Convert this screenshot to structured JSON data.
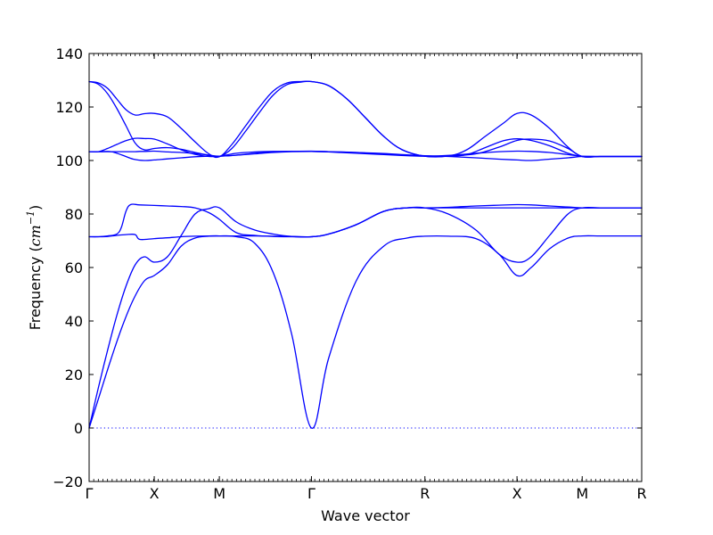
{
  "chart_data": {
    "type": "line",
    "title": "",
    "xlabel": "Wave vector",
    "ylabel_text": "Frequency (",
    "ylabel_unit": "cm",
    "ylabel_sup": "−1",
    "ylabel_close": ")",
    "ylim": [
      -20,
      140
    ],
    "yticks": [
      -20,
      0,
      20,
      40,
      60,
      80,
      100,
      120,
      140
    ],
    "xlim": [
      0,
      6
    ],
    "xticks": [
      {
        "pos": 0.0,
        "label": "Γ"
      },
      {
        "pos": 0.707,
        "label": "X"
      },
      {
        "pos": 1.414,
        "label": "M"
      },
      {
        "pos": 2.414,
        "label": "Γ"
      },
      {
        "pos": 3.646,
        "label": "R"
      },
      {
        "pos": 4.646,
        "label": "X"
      },
      {
        "pos": 5.354,
        "label": "M"
      },
      {
        "pos": 6.0,
        "label": "R"
      }
    ],
    "grid": false,
    "zero_line": true,
    "colors": {
      "series": "#0000ff",
      "axes": "#000000"
    },
    "series": [
      {
        "x": [
          0,
          0.12,
          0.24,
          0.36,
          0.48,
          0.6,
          0.707,
          0.85,
          1.0,
          1.15,
          1.3,
          1.414,
          1.6,
          1.8,
          2.0,
          2.2,
          2.414,
          2.6,
          2.9,
          3.2,
          3.45,
          3.646,
          3.9,
          4.2,
          4.45,
          4.646,
          4.8,
          5.0,
          5.2,
          5.354,
          5.55,
          5.8,
          6.0
        ],
        "y": [
          0,
          13,
          26,
          38,
          48,
          55,
          57,
          61,
          68,
          71,
          71.7,
          71.8,
          71.5,
          69,
          58,
          35,
          0,
          26,
          55,
          68,
          71,
          71.7,
          71.7,
          70.8,
          65,
          57,
          60,
          67,
          71,
          71.8,
          71.8,
          71.8,
          71.8
        ]
      },
      {
        "x": [
          0,
          0.1,
          0.2,
          0.3,
          0.4,
          0.5,
          0.6,
          0.707,
          0.85,
          1.0,
          1.15,
          1.3,
          1.414,
          1.6,
          1.8,
          2.0,
          2.2,
          2.414,
          2.6,
          2.9,
          3.2,
          3.45,
          3.646,
          3.9,
          4.2,
          4.45,
          4.646,
          4.8,
          5.0,
          5.2,
          5.354,
          5.55,
          5.8,
          6.0
        ],
        "y": [
          0,
          15,
          29,
          42,
          53,
          61,
          64,
          62,
          64,
          72,
          80,
          82,
          82.3,
          77,
          74,
          72.5,
          71.6,
          71.5,
          72.5,
          76,
          81,
          82.3,
          82.3,
          80,
          74,
          65,
          62,
          64,
          72,
          80,
          82.3,
          82.3,
          82.3,
          82.3
        ]
      },
      {
        "x": [
          0,
          0.1,
          0.2,
          0.3,
          0.35,
          0.4,
          0.45,
          0.55,
          0.707,
          0.85,
          1.0,
          1.15,
          1.3,
          1.414,
          1.6,
          1.8,
          2.0,
          2.2,
          2.414,
          2.6,
          2.9,
          3.2,
          3.45,
          3.646,
          3.9,
          4.2,
          4.45,
          4.646,
          4.8,
          5.0,
          5.2,
          5.354,
          5.55,
          5.8,
          6.0
        ],
        "y": [
          71.5,
          71.5,
          71.8,
          72.5,
          75,
          81,
          83.5,
          83.4,
          83.2,
          83,
          82.8,
          82.3,
          80.5,
          78,
          73,
          72,
          71.6,
          71.5,
          71.5,
          72.5,
          76,
          81,
          82.3,
          82.3,
          82.5,
          83,
          83.3,
          83.5,
          83.4,
          83,
          82.6,
          82.3,
          82.3,
          82.3,
          82.3
        ]
      },
      {
        "x": [
          0,
          0.1,
          0.2,
          0.3,
          0.4,
          0.5,
          0.55,
          0.707,
          0.85,
          1.0,
          1.15,
          1.3,
          1.414,
          1.6,
          1.8,
          2.0,
          2.2,
          2.414,
          2.6,
          2.9,
          3.2,
          3.45,
          3.646,
          3.9,
          4.2,
          4.45,
          4.646,
          4.8,
          5.0,
          5.2,
          5.354,
          5.55,
          5.8,
          6.0
        ],
        "y": [
          71.5,
          71.5,
          71.6,
          72,
          72.3,
          72.3,
          70.5,
          70.8,
          71.1,
          71.5,
          71.7,
          71.8,
          71.8,
          71.8,
          71.8,
          71.7,
          71.6,
          71.5,
          72.5,
          76,
          81,
          82.3,
          82.3,
          82.3,
          82.3,
          82.3,
          82.3,
          82.3,
          82.3,
          82.3,
          82.3,
          82.3,
          82.3,
          82.3
        ]
      },
      {
        "x": [
          0,
          0.1,
          0.2,
          0.3,
          0.4,
          0.5,
          0.55,
          0.6,
          0.707,
          0.85,
          1.0,
          1.15,
          1.3,
          1.414,
          1.6,
          1.8,
          2.0,
          2.2,
          2.414,
          2.6,
          2.9,
          3.2,
          3.45,
          3.646,
          3.9,
          4.2,
          4.45,
          4.646,
          4.8,
          5.0,
          5.2,
          5.354,
          5.55,
          5.8,
          6.0
        ],
        "y": [
          103.3,
          103.3,
          103.3,
          103.3,
          103.3,
          103.3,
          103.4,
          103.4,
          103.5,
          103.2,
          103,
          102.6,
          102,
          101.6,
          102,
          102.5,
          103,
          103.3,
          103.4,
          103.3,
          103,
          102.6,
          102.1,
          101.8,
          101.5,
          101,
          100.5,
          100.2,
          100,
          100.5,
          101,
          101.5,
          101.5,
          101.5,
          101.5
        ]
      },
      {
        "x": [
          0,
          0.1,
          0.2,
          0.3,
          0.4,
          0.5,
          0.6,
          0.707,
          0.85,
          1.0,
          1.15,
          1.3,
          1.414,
          1.6,
          1.8,
          2.0,
          2.2,
          2.414,
          2.6,
          2.9,
          3.2,
          3.45,
          3.646,
          3.9,
          4.2,
          4.45,
          4.646,
          4.8,
          5.0,
          5.2,
          5.354,
          5.55,
          5.8,
          6.0
        ],
        "y": [
          103.3,
          103.3,
          104.5,
          106,
          107.4,
          108.3,
          108.2,
          108,
          106.2,
          104,
          102.3,
          101.5,
          101.6,
          102.7,
          103.2,
          103.4,
          103.4,
          103.4,
          103.2,
          102.7,
          102.2,
          101.8,
          101.6,
          101.9,
          102.7,
          103.3,
          103.5,
          103.4,
          103,
          102.2,
          101.6,
          101.5,
          101.5,
          101.5
        ]
      },
      {
        "x": [
          0,
          0.12,
          0.24,
          0.36,
          0.48,
          0.6,
          0.707,
          0.85,
          1.0,
          1.15,
          1.3,
          1.414,
          1.6,
          1.8,
          2.0,
          2.2,
          2.414,
          2.6,
          2.9,
          3.2,
          3.45,
          3.646,
          3.9,
          4.2,
          4.45,
          4.646,
          4.8,
          5.0,
          5.2,
          5.354,
          5.55,
          5.8,
          6.0
        ],
        "y": [
          103.3,
          103.3,
          103.3,
          102,
          100.5,
          100,
          100.2,
          100.6,
          101,
          101.4,
          101.6,
          101.6,
          102,
          102.7,
          103.2,
          103.4,
          103.5,
          103.3,
          103,
          102.4,
          102,
          101.7,
          101.7,
          102.5,
          105,
          107.5,
          108,
          107.3,
          104.5,
          101.5,
          101.5,
          101.5,
          101.5
        ]
      },
      {
        "x": [
          0,
          0.1,
          0.2,
          0.3,
          0.4,
          0.5,
          0.6,
          0.707,
          0.85,
          1.0,
          1.15,
          1.3,
          1.414,
          1.55,
          1.7,
          1.85,
          2.0,
          2.15,
          2.3,
          2.414,
          2.6,
          2.8,
          3.0,
          3.2,
          3.4,
          3.646,
          3.9,
          4.1,
          4.3,
          4.5,
          4.646,
          4.8,
          5.0,
          5.2,
          5.354,
          5.55,
          5.8,
          6.0
        ],
        "y": [
          129.5,
          129,
          127,
          123,
          119,
          117,
          117.5,
          117.6,
          116.3,
          112,
          107,
          102.5,
          101.4,
          106,
          113,
          120,
          126,
          129,
          129.5,
          129.5,
          128,
          123,
          116,
          109,
          104,
          101.6,
          101.7,
          104,
          109,
          114,
          117.6,
          117,
          112,
          105,
          101.5,
          101.5,
          101.5,
          101.5
        ]
      },
      {
        "x": [
          0,
          0.1,
          0.2,
          0.3,
          0.4,
          0.5,
          0.6,
          0.707,
          0.85,
          1.0,
          1.15,
          1.3,
          1.414,
          1.55,
          1.7,
          1.85,
          2.0,
          2.15,
          2.3,
          2.414,
          2.6,
          2.8,
          3.0,
          3.2,
          3.4,
          3.646,
          3.9,
          4.1,
          4.3,
          4.5,
          4.646,
          4.8,
          5.0,
          5.2,
          5.354,
          5.55,
          5.8,
          6.0
        ],
        "y": [
          129.5,
          128.5,
          125,
          119.5,
          113,
          106.5,
          104,
          104.5,
          104.8,
          104.2,
          103,
          102,
          101.5,
          104.5,
          111,
          118,
          124.5,
          128.4,
          129.3,
          129.5,
          128,
          123,
          116,
          109,
          104,
          101.6,
          101.6,
          102.2,
          104.8,
          107.4,
          108.1,
          107.5,
          105.5,
          102.7,
          101.5,
          101.5,
          101.5,
          101.5
        ]
      }
    ]
  }
}
